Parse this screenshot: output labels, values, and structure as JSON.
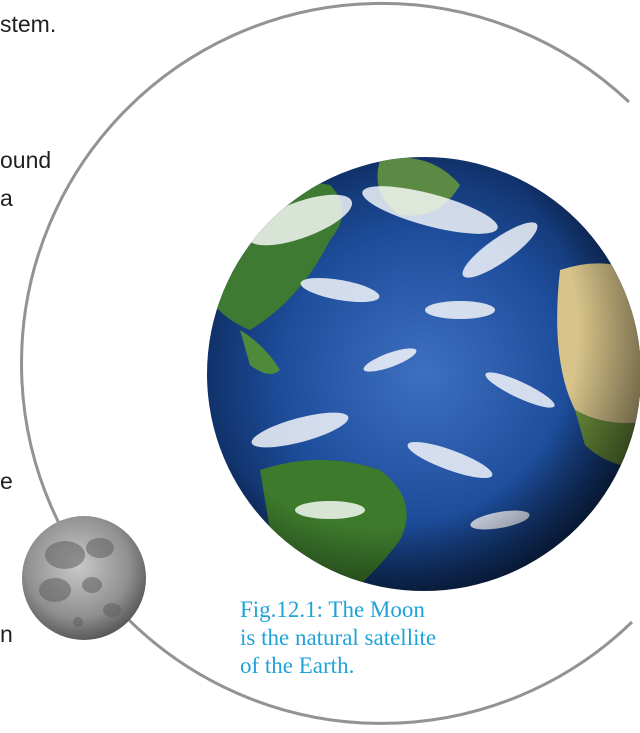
{
  "text_fragments": [
    "stem.",
    "ound",
    "a",
    "e",
    "n"
  ],
  "caption": {
    "lines": [
      "Fig.12.1: The Moon",
      "is the natural satellite",
      "of the Earth."
    ]
  },
  "colors": {
    "caption": "#1fa3d8",
    "orbit": "#939393",
    "ocean": "#1d4d9b",
    "land": "#3f7a32",
    "desert": "#d8c48a",
    "moon": "#8f8f8f"
  }
}
